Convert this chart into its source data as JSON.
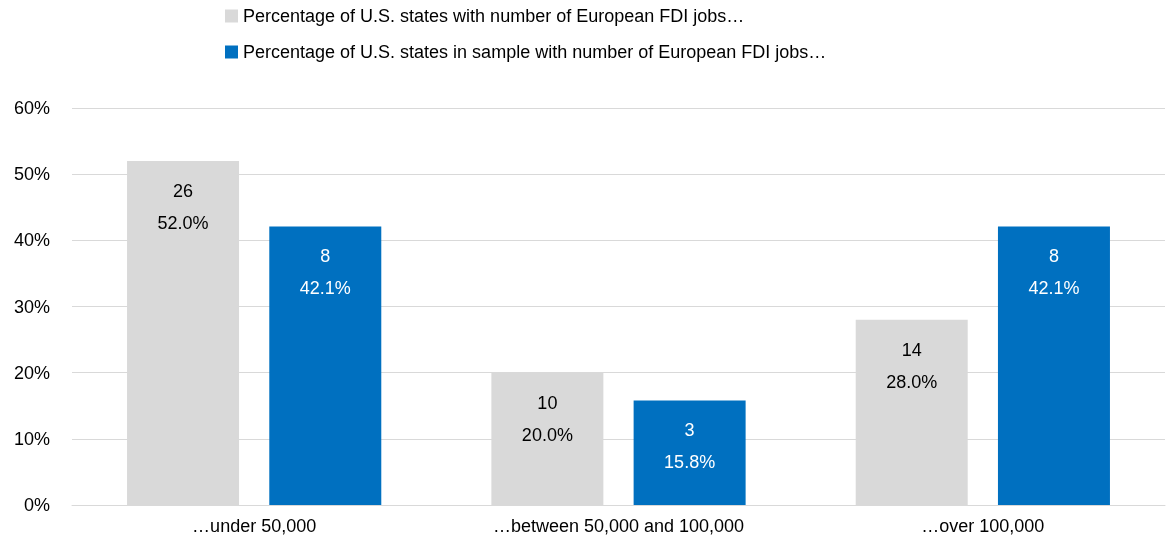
{
  "chart_data": {
    "type": "bar",
    "categories": [
      "…under 50,000",
      "…between 50,000 and 100,000",
      "…over 100,000"
    ],
    "series": [
      {
        "name": "Percentage of U.S. states with number of European FDI jobs…",
        "color": "#d9d9d9",
        "values": [
          52.0,
          20.0,
          28.0
        ],
        "value_labels": [
          "26\n52.0%",
          "10\n20.0%",
          "14\n28.0%"
        ]
      },
      {
        "name": "Percentage of U.S. states in sample with number of European FDI jobs…",
        "color": "#0070c0",
        "values": [
          42.1,
          15.8,
          42.1
        ],
        "value_labels": [
          "8\n42.1%",
          "3\n15.8%",
          "8\n42.1%"
        ]
      }
    ],
    "ylim": [
      0,
      60
    ],
    "yticks": [
      {
        "value": 0,
        "label": "0%"
      },
      {
        "value": 10,
        "label": "10%"
      },
      {
        "value": 20,
        "label": "20%"
      },
      {
        "value": 30,
        "label": "30%"
      },
      {
        "value": 40,
        "label": "40%"
      },
      {
        "value": 50,
        "label": "50%"
      },
      {
        "value": 60,
        "label": "60%"
      }
    ],
    "grid": "y",
    "legend": "top",
    "marker": "square"
  }
}
